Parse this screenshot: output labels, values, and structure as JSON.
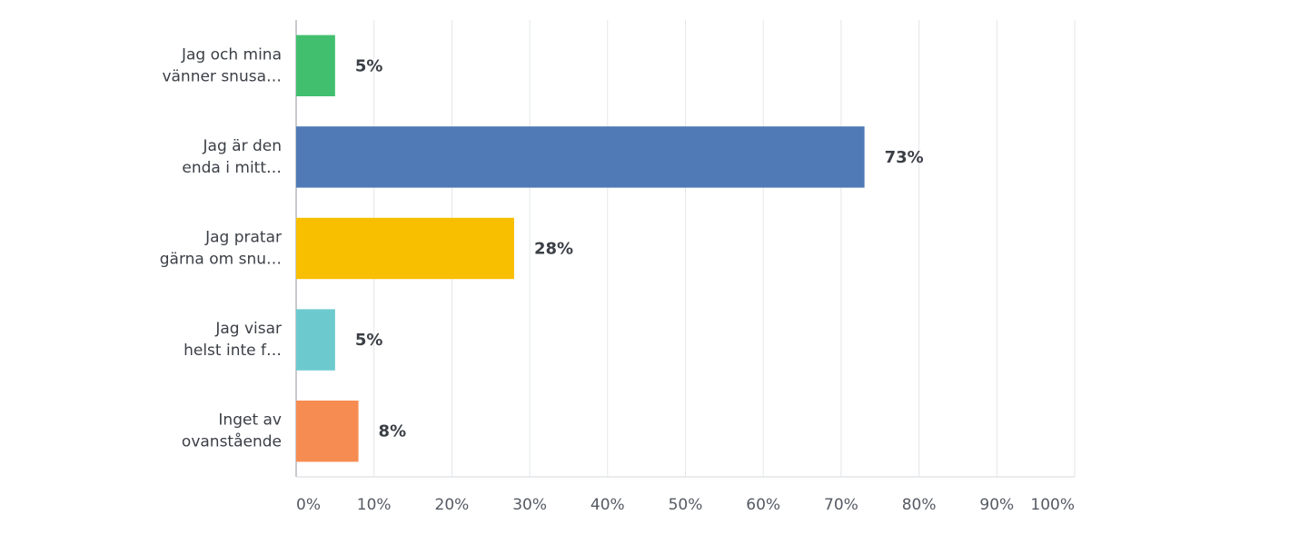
{
  "chart_data": {
    "type": "bar",
    "orientation": "horizontal",
    "categories": [
      [
        "Jag och mina",
        "vänner snusa…"
      ],
      [
        "Jag är den",
        "enda i mitt…"
      ],
      [
        "Jag pratar",
        "gärna om snu…"
      ],
      [
        "Jag visar",
        "helst inte f…"
      ],
      [
        "Inget av",
        "ovanstående"
      ]
    ],
    "values": [
      5,
      73,
      28,
      5,
      8
    ],
    "value_labels": [
      "5%",
      "73%",
      "28%",
      "5%",
      "8%"
    ],
    "colors": [
      "#41bf6e",
      "#4f7ab5",
      "#f7bf00",
      "#6ccace",
      "#f78c52"
    ],
    "xlim": [
      0,
      100
    ],
    "xticks": [
      {
        "value": 0,
        "label": "0%"
      },
      {
        "value": 10,
        "label": "10%"
      },
      {
        "value": 20,
        "label": "20%"
      },
      {
        "value": 30,
        "label": "30%"
      },
      {
        "value": 40,
        "label": "40%"
      },
      {
        "value": 50,
        "label": "50%"
      },
      {
        "value": 60,
        "label": "60%"
      },
      {
        "value": 70,
        "label": "70%"
      },
      {
        "value": 80,
        "label": "80%"
      },
      {
        "value": 90,
        "label": "90%"
      },
      {
        "value": 100,
        "label": "100%"
      }
    ],
    "grid": true
  }
}
